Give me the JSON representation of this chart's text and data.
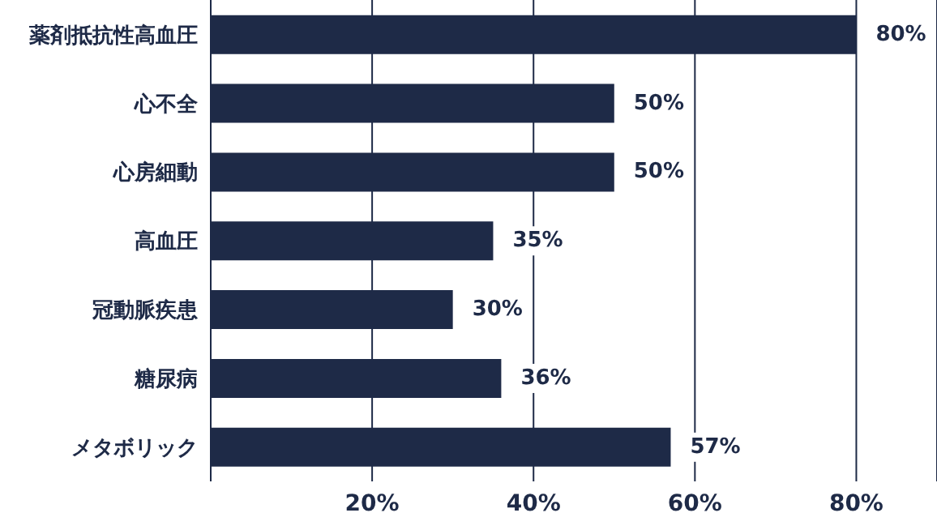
{
  "chart_data": {
    "type": "bar",
    "orientation": "horizontal",
    "categories": [
      "薬剤抵抗性高血圧",
      "心不全",
      "心房細動",
      "高血圧",
      "冠動脈疾患",
      "糖尿病",
      "メタボリック"
    ],
    "values": [
      80,
      50,
      50,
      35,
      30,
      36,
      57
    ],
    "value_labels": [
      "80%",
      "50%",
      "50%",
      "35%",
      "30%",
      "36%",
      "57%"
    ],
    "color": "#1e2a47",
    "xlim": [
      0,
      90
    ],
    "xticks": [
      {
        "value": 20,
        "label": "20%"
      },
      {
        "value": 40,
        "label": "40%"
      },
      {
        "value": 60,
        "label": "60%"
      },
      {
        "value": 80,
        "label": "80%"
      }
    ],
    "grid": "x"
  }
}
